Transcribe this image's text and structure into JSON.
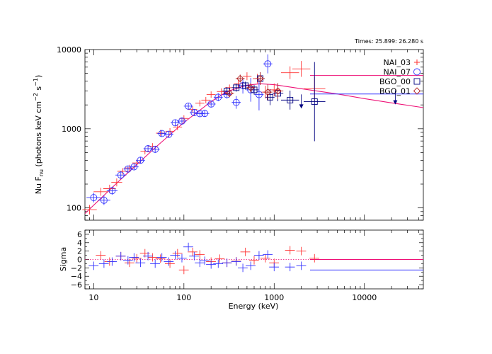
{
  "chart_data": [
    {
      "type": "scatter",
      "title": "Times: 25.899: 26.280 s",
      "xlabel": "",
      "ylabel": "Nu F_nu (photons keV cm^-2 s^-1)",
      "ylabel_parts": {
        "pre": "Nu F",
        "sub": "nu",
        "mid": " (photons keV cm",
        "sup1": "−2",
        "mid2": " s",
        "sup2": "−1",
        "post": ")"
      },
      "xscale": "log",
      "yscale": "log",
      "xlim": [
        8,
        45000
      ],
      "ylim": [
        70,
        10000
      ],
      "y_ticks": [
        100,
        1000,
        10000
      ],
      "y_tick_labels": [
        "100",
        "1000",
        "10000"
      ],
      "legend_position": "top-right",
      "legend": [
        {
          "label": "NAI_03",
          "marker": "plus",
          "color": "#ff3333"
        },
        {
          "label": "NAI_07",
          "marker": "circle",
          "color": "#3333ff"
        },
        {
          "label": "BGO_00",
          "marker": "square",
          "color": "#000080"
        },
        {
          "label": "BGO_01",
          "marker": "diamond",
          "color": "#b22222"
        }
      ],
      "model": {
        "color": "#ee1177",
        "x": [
          8,
          20,
          50,
          100,
          200,
          300,
          500,
          700,
          1000,
          2000,
          5000,
          10000,
          20000,
          45000
        ],
        "y": [
          85,
          230,
          600,
          1200,
          2200,
          2950,
          3550,
          3700,
          3600,
          3200,
          2750,
          2400,
          2120,
          1850
        ]
      },
      "series": [
        {
          "name": "NAI_03",
          "marker": "plus",
          "color": "#ff3333",
          "x": [
            9,
            12,
            15,
            18,
            21,
            25,
            30,
            37,
            45,
            55,
            70,
            85,
            100,
            125,
            150,
            175,
            200,
            260,
            320,
            400,
            500,
            650,
            800,
            1000,
            1500,
            2000,
            2800
          ],
          "y": [
            95,
            160,
            175,
            210,
            290,
            320,
            370,
            520,
            600,
            880,
            930,
            1050,
            1350,
            1750,
            2100,
            2300,
            2700,
            2950,
            3300,
            3700,
            4600,
            4300,
            2900,
            3100,
            5100,
            5700,
            3200
          ],
          "xerr": [
            0.08,
            0.08,
            0.07,
            0.06,
            0.06,
            0.06,
            0.05,
            0.05,
            0.05,
            0.05,
            0.05,
            0.05,
            0.05,
            0.05,
            0.05,
            0.05,
            0.05,
            0.05,
            0.05,
            0.05,
            0.05,
            0.05,
            0.05,
            0.06,
            0.1,
            0.1,
            0.12
          ],
          "yerr": [
            0.06,
            0.05,
            0.05,
            0.05,
            0.04,
            0.04,
            0.04,
            0.04,
            0.04,
            0.04,
            0.04,
            0.04,
            0.04,
            0.04,
            0.04,
            0.04,
            0.04,
            0.04,
            0.04,
            0.05,
            0.05,
            0.06,
            0.08,
            0.08,
            0.08,
            0.1,
            0.15
          ]
        },
        {
          "name": "NAI_07",
          "marker": "circle",
          "color": "#3333ff",
          "x": [
            10,
            13,
            16,
            20,
            24,
            28,
            33,
            40,
            48,
            57,
            68,
            80,
            95,
            112,
            130,
            150,
            170,
            200,
            240,
            300,
            380,
            450,
            550,
            680,
            850
          ],
          "y": [
            135,
            125,
            165,
            260,
            310,
            330,
            400,
            560,
            550,
            870,
            850,
            1190,
            1250,
            1930,
            1600,
            1550,
            1560,
            2050,
            2500,
            2700,
            2150,
            3500,
            3100,
            2700,
            6600
          ],
          "xerr": [
            0.08,
            0.07,
            0.06,
            0.06,
            0.05,
            0.05,
            0.05,
            0.05,
            0.05,
            0.05,
            0.05,
            0.05,
            0.05,
            0.05,
            0.05,
            0.05,
            0.05,
            0.05,
            0.05,
            0.05,
            0.05,
            0.05,
            0.05,
            0.05,
            0.05
          ],
          "yerr": [
            0.06,
            0.06,
            0.05,
            0.05,
            0.04,
            0.04,
            0.04,
            0.04,
            0.04,
            0.04,
            0.04,
            0.04,
            0.04,
            0.04,
            0.04,
            0.04,
            0.04,
            0.04,
            0.05,
            0.05,
            0.08,
            0.1,
            0.15,
            0.2,
            0.12
          ]
        },
        {
          "name": "BGO_00",
          "marker": "square",
          "color": "#000080",
          "x": [
            300,
            380,
            480,
            600,
            700,
            900,
            1100,
            1500,
            2800
          ],
          "y": [
            3000,
            3300,
            3500,
            3100,
            4300,
            2500,
            2800,
            2300,
            2200
          ],
          "xerr": [
            0.05,
            0.05,
            0.05,
            0.05,
            0.05,
            0.05,
            0.06,
            0.1,
            0.12
          ],
          "yerr": [
            0.05,
            0.05,
            0.05,
            0.06,
            0.08,
            0.1,
            0.1,
            0.12,
            0.5
          ]
        },
        {
          "name": "BGO_01",
          "marker": "diamond",
          "color": "#b22222",
          "x": [
            320,
            420,
            550,
            700,
            850,
            1100
          ],
          "y": [
            2800,
            4300,
            3300,
            4300,
            2900,
            3000
          ],
          "xerr": [
            0.05,
            0.05,
            0.05,
            0.05,
            0.05,
            0.06
          ],
          "yerr": [
            0.05,
            0.05,
            0.06,
            0.08,
            0.1,
            0.1
          ]
        }
      ],
      "upper_limits": [
        {
          "x": 2000,
          "y": 2400,
          "color": "#000080"
        },
        {
          "x": 22000,
          "y": 2700,
          "color": "#000080"
        }
      ],
      "long_bars": [
        {
          "x0": 2500,
          "x1": 45000,
          "y": 4700,
          "color": "#ee1177"
        },
        {
          "x0": 2500,
          "x1": 45000,
          "y": 2750,
          "color": "#3333ff"
        }
      ]
    },
    {
      "type": "scatter",
      "title": "",
      "xlabel": "Energy (keV)",
      "ylabel": "Sigma",
      "xscale": "log",
      "xlim": [
        8,
        45000
      ],
      "ylim": [
        -7,
        7
      ],
      "x_ticks": [
        10,
        100,
        1000,
        10000
      ],
      "x_tick_labels": [
        "10",
        "100",
        "1000",
        "10000"
      ],
      "y_ticks": [
        6,
        4,
        2,
        0,
        -2,
        -4,
        -6
      ],
      "y_tick_labels": [
        "6",
        "4",
        "2",
        "0",
        "−2",
        "−4",
        "−6"
      ],
      "zero_line": {
        "y": 0,
        "style": "dotted",
        "color": "#ee1177"
      },
      "series": [
        {
          "name": "NAI_03",
          "color": "#ff3333",
          "x": [
            12,
            15,
            20,
            25,
            30,
            37,
            45,
            55,
            70,
            85,
            100,
            125,
            150,
            200,
            250,
            300,
            380,
            480,
            600,
            800,
            1000,
            1500,
            2000,
            2800
          ],
          "y": [
            1.0,
            -0.5,
            0.8,
            -0.8,
            0.3,
            1.5,
            0.5,
            0.2,
            -1.0,
            1.5,
            -2.5,
            1.8,
            1.2,
            -0.5,
            0.2,
            -0.8,
            -0.4,
            1.8,
            -0.2,
            0.3,
            -0.8,
            2.2,
            2.0,
            0.3
          ],
          "yerr": [
            1,
            1,
            1,
            1,
            1,
            1,
            1,
            1,
            1,
            1,
            1,
            1,
            1,
            1,
            1,
            1,
            1,
            1,
            1,
            1,
            1,
            1,
            1,
            1
          ]
        },
        {
          "name": "NAI_07",
          "color": "#3333ff",
          "x": [
            10,
            13,
            16,
            20,
            24,
            28,
            33,
            40,
            48,
            57,
            68,
            80,
            95,
            112,
            130,
            150,
            170,
            200,
            240,
            300,
            380,
            450,
            550,
            680,
            850,
            1000,
            1500,
            2000
          ],
          "y": [
            -1.5,
            -1.0,
            -0.5,
            0.8,
            -0.2,
            0.5,
            -0.8,
            0.8,
            -1.0,
            0.5,
            -0.5,
            1.0,
            0.3,
            3.0,
            0.8,
            -0.8,
            -0.3,
            -1.2,
            -1.0,
            -0.8,
            -0.5,
            -2.0,
            -1.5,
            1.0,
            1.2,
            -1.8,
            -1.8,
            -1.5
          ],
          "yerr": [
            1,
            1,
            1,
            1,
            1,
            1,
            1,
            1,
            1,
            1,
            1,
            1,
            1,
            1,
            1,
            1,
            1,
            1,
            1,
            1,
            1,
            1,
            1,
            1,
            1,
            1,
            1,
            1
          ]
        }
      ],
      "long_bars": [
        {
          "x0": 2500,
          "x1": 45000,
          "y": 0.0,
          "color": "#ee1177"
        },
        {
          "x0": 2500,
          "x1": 45000,
          "y": -2.5,
          "color": "#3333ff"
        }
      ]
    }
  ]
}
